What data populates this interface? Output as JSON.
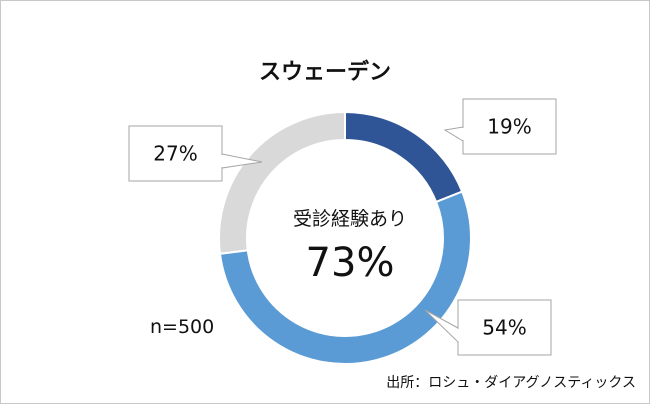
{
  "chart_data": {
    "type": "pie",
    "title": "スウェーデン",
    "categories": [
      "",
      "",
      ""
    ],
    "values": [
      19,
      54,
      27
    ],
    "labels": [
      "19%",
      "54%",
      "27%"
    ],
    "colors": [
      "#2f5597",
      "#5b9bd5",
      "#d9d9d9"
    ],
    "center_label": "受診経験あり",
    "center_value": "73%",
    "sample_size": "n=500",
    "source": "出所：ロシュ・ダイアグノスティックス"
  }
}
